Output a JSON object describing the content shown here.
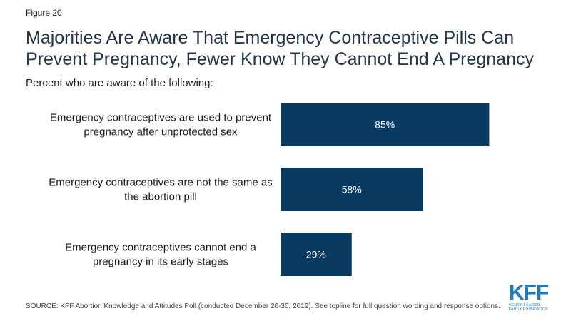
{
  "figure_label": "Figure 20",
  "title_lines": [
    "Majorities Are Aware That Emergency Contraceptive Pills Can",
    "Prevent Pregnancy, Fewer Know They Cannot End A Pregnancy"
  ],
  "subtitle": "Percent who are aware of the following:",
  "source": "SOURCE: KFF Abortion Knowledge and Attitudes Poll (conducted December 20-30, 2019). See topline for full question wording and response options.",
  "logo": {
    "mark": "KFF",
    "sub_lines": [
      "HENRY J KAISER",
      "FAMILY FOUNDATION"
    ],
    "color": "#1a7bc4"
  },
  "chart_data": {
    "type": "bar",
    "orientation": "horizontal",
    "categories": [
      [
        "Emergency contraceptives are used to prevent",
        "pregnancy after unprotected sex"
      ],
      [
        "Emergency contraceptives are not the same as",
        "the abortion pill"
      ],
      [
        "Emergency contraceptives cannot end a",
        "pregnancy in its early stages"
      ]
    ],
    "values": [
      85,
      58,
      29
    ],
    "data_labels": [
      "85%",
      "58%",
      "29%"
    ],
    "xlim": [
      0,
      100
    ],
    "grid": false,
    "bar_color": "#083a62",
    "label_color": "#ffffff"
  }
}
